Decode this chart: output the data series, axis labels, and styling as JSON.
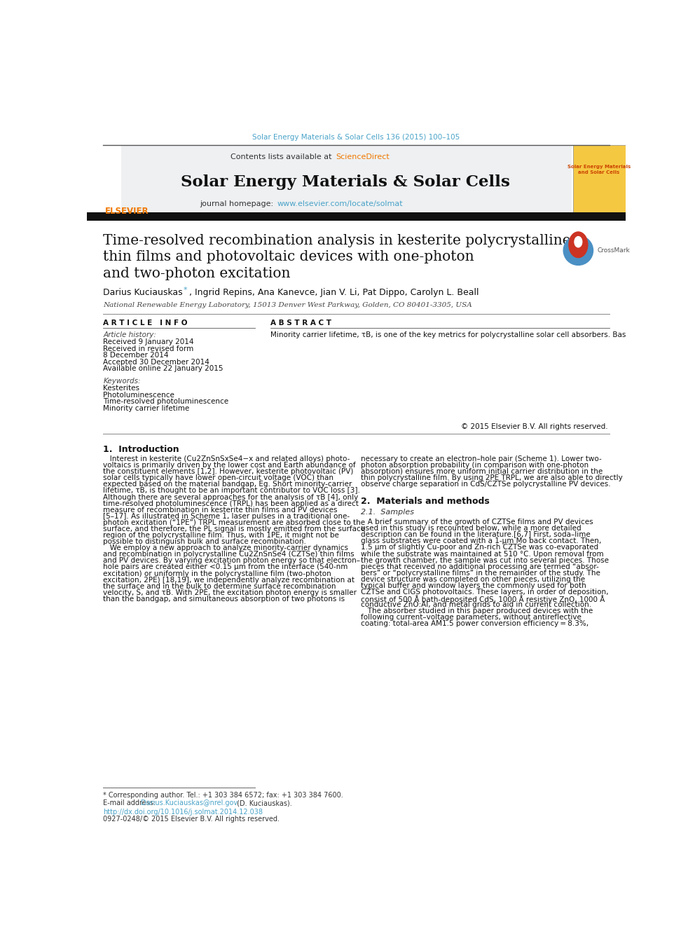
{
  "page_width": 9.92,
  "page_height": 13.23,
  "bg_color": "#ffffff",
  "journal_ref": "Solar Energy Materials & Solar Cells 136 (2015) 100–105",
  "journal_ref_color": "#4aa3c8",
  "header_contents": "Contents lists available at ",
  "header_sciencedirect": "ScienceDirect",
  "header_sciencedirect_color": "#f07800",
  "journal_name": "Solar Energy Materials & Solar Cells",
  "journal_homepage_label": "journal homepage: ",
  "journal_homepage_url": "www.elsevier.com/locate/solmat",
  "journal_homepage_url_color": "#4aa3c8",
  "elsevier_color": "#f07800",
  "title_line1": "Time-resolved recombination analysis in kesterite polycrystalline",
  "title_line2": "thin films and photovoltaic devices with one-photon",
  "title_line3": "and two-photon excitation",
  "affiliation": "National Renewable Energy Laboratory, 15013 Denver West Parkway, Golden, CO 80401-3305, USA",
  "article_info_header": "A R T I C L E   I N F O",
  "article_history_label": "Article history:",
  "article_history": [
    "Received 9 January 2014",
    "Received in revised form",
    "8 December 2014",
    "Accepted 30 December 2014",
    "Available online 22 January 2015"
  ],
  "keywords_label": "Keywords:",
  "keywords": [
    "Kesterites",
    "Photoluminescence",
    "Time-resolved photoluminescence",
    "Minority carrier lifetime"
  ],
  "abstract_header": "A B S T R A C T",
  "abstract_text": "Minority carrier lifetime, τB, is one of the key metrics for polycrystalline solar cell absorbers. Based on different spatial carrier-generation profiles obtained using one-photon and two-photon excitation (1PE and 2PE, respectively), we developed a new approach to determine τB in polycrystalline thin films. By comparing time-resolved photoluminescence data measured with 1PE and 2PE, we extract τB and surface recombination velocity S, and resolve charge separation at the pn junction. For coevaporated kesterite (Cu2ZnSnSe4) absorbers, we find S = (0.8–2.1)×10⁴ cm s−1 and τB = 7.0 ± 0.5 ns. For corresponding photovoltaic devices, charge separation occurs in ≤ 2 ns.",
  "copyright": "© 2015 Elsevier B.V. All rights reserved.",
  "section1_title": "1.  Introduction",
  "section1_col1_lines": [
    "   Interest in kesterite (Cu2ZnSnSxSe4−x and related alloys) photo-",
    "voltaics is primarily driven by the lower cost and Earth abundance of",
    "the constituent elements [1,2]. However, kesterite photovoltaic (PV)",
    "solar cells typically have lower open-circuit voltage (VOC) than",
    "expected based on the material bandgap, Eg. Short minority-carrier",
    "lifetime, τB, is thought to be an important contributor to VOC loss [3].",
    "Although there are several approaches for the analysis of τB [4], only",
    "time-resolved photoluminescence (TRPL) has been applied as a direct",
    "measure of recombination in kesterite thin films and PV devices",
    "[5–17]. As illustrated in Scheme 1, laser pulses in a traditional one-",
    "photon excitation (“1PE”) TRPL measurement are absorbed close to the",
    "surface, and therefore, the PL signal is mostly emitted from the surface",
    "region of the polycrystalline film. Thus, with 1PE, it might not be",
    "possible to distinguish bulk and surface recombination.",
    "   We employ a new approach to analyze minority-carrier dynamics",
    "and recombination in polycrystalline Cu2ZnSnSe4 (CZTSe) thin films",
    "and PV devices. By varying excitation photon energy so that electron–",
    "hole pairs are created either <0.15 μm from the interface (540-nm",
    "excitation) or uniformly in the polycrystalline film (two-photon",
    "excitation, 2PE) [18,19], we independently analyze recombination at",
    "the surface and in the bulk to determine surface recombination",
    "velocity, S, and τB. With 2PE, the excitation photon energy is smaller",
    "than the bandgap, and simultaneous absorption of two photons is"
  ],
  "section1_col2_lines": [
    "necessary to create an electron–hole pair (Scheme 1). Lower two-",
    "photon absorption probability (in comparison with one-photon",
    "absorption) ensures more uniform initial carrier distribution in the",
    "thin polycrystalline film. By using 2PE TRPL, we are also able to directly",
    "observe charge separation in CdS/CZTSe polycrystalline PV devices."
  ],
  "section2_title": "2.  Materials and methods",
  "section2_sub": "2.1.  Samples",
  "section2_col2_lines": [
    "   A brief summary of the growth of CZTSe films and PV devices",
    "used in this study is recounted below, while a more detailed",
    "description can be found in the literature.[6,7] First, soda–lime",
    "glass substrates were coated with a 1-μm Mo back contact. Then,",
    "1.5 μm of slightly Cu-poor and Zn-rich CZTSe was co-evaporated",
    "while the substrate was maintained at 510 °C. Upon removal from",
    "the growth chamber, the sample was cut into several pieces. Those",
    "pieces that received no additional processing are termed “absor-",
    "bers” or “polycrystalline films” in the remainder of the study. The",
    "device structure was completed on other pieces, utilizing the",
    "typical buffer and window layers the commonly used for both",
    "CZTSe and CIGS photovoltaics. These layers, in order of deposition,",
    "consist of 500 Å bath-deposited CdS, 1000 Å resistive ZnO, 1000 Å",
    "conductive ZnO:Al, and metal grids to aid in current collection.",
    "   The absorber studied in this paper produced devices with the",
    "following current–voltage parameters, without antireflective",
    "coating: total-area AM1.5 power conversion efficiency = 8.3%,"
  ],
  "footnote_star": "* Corresponding author. Tel.: +1 303 384 6572; fax: +1 303 384 7600.",
  "footnote_email_label": "E-mail address: ",
  "footnote_email": "Darius.Kuciauskas@nrel.gov",
  "footnote_name": " (D. Kuciauskas).",
  "doi": "http://dx.doi.org/10.1016/j.solmat.2014.12.038",
  "issn": "0927-0248/© 2015 Elsevier B.V. All rights reserved."
}
